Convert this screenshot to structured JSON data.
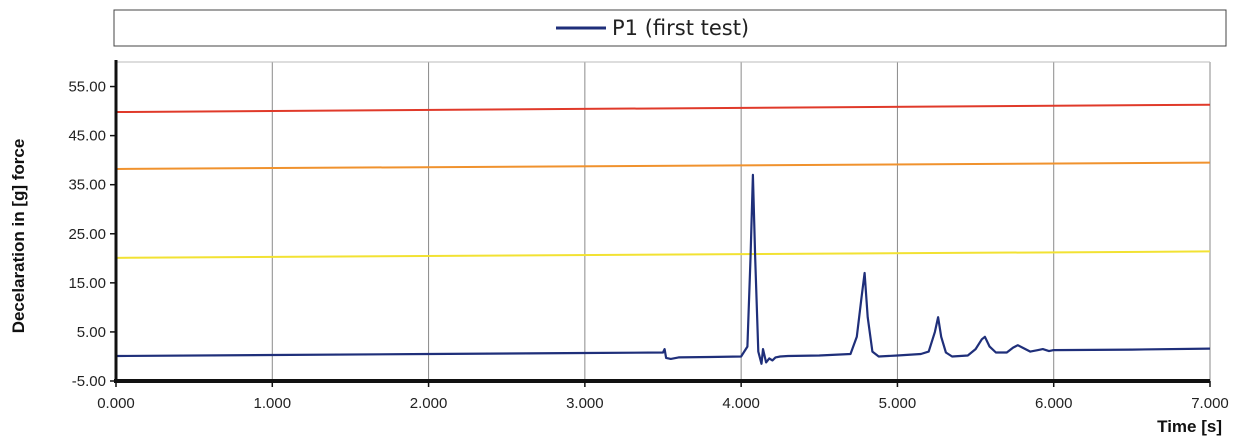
{
  "chart_data": {
    "type": "line",
    "title": "",
    "xlabel": "Time [s]",
    "ylabel": "Decelaration in [g]  force",
    "xlim": [
      0,
      7
    ],
    "ylim": [
      -5,
      60
    ],
    "x_ticks": [
      "0.000",
      "1.000",
      "2.000",
      "3.000",
      "4.000",
      "5.000",
      "6.000",
      "7.000"
    ],
    "y_ticks": [
      "-5.00",
      "5.00",
      "15.00",
      "25.00",
      "35.00",
      "45.00",
      "55.00"
    ],
    "grid": "vertical",
    "legend": {
      "position": "top",
      "entries": [
        "P1 (first test)"
      ]
    },
    "series": [
      {
        "name": "P1 (first test)",
        "color": "#1f2f7a",
        "x": [
          0,
          1,
          2,
          3,
          3.5,
          3.51,
          3.52,
          3.55,
          3.6,
          3.8,
          4.0,
          4.04,
          4.06,
          4.075,
          4.09,
          4.11,
          4.13,
          4.14,
          4.16,
          4.18,
          4.2,
          4.22,
          4.25,
          4.3,
          4.5,
          4.7,
          4.74,
          4.77,
          4.79,
          4.81,
          4.84,
          4.88,
          5.0,
          5.15,
          5.2,
          5.24,
          5.26,
          5.28,
          5.31,
          5.35,
          5.45,
          5.5,
          5.54,
          5.56,
          5.59,
          5.63,
          5.7,
          5.74,
          5.77,
          5.8,
          5.85,
          5.9,
          5.93,
          5.97,
          6.0,
          6.5,
          7.0
        ],
        "y": [
          0.1,
          0.3,
          0.5,
          0.7,
          0.8,
          1.5,
          -0.3,
          -0.5,
          -0.2,
          -0.1,
          0,
          2,
          20,
          37,
          20,
          1,
          -1.5,
          1.5,
          -1.2,
          -0.4,
          -0.8,
          -0.2,
          0,
          0.1,
          0.2,
          0.5,
          4,
          12,
          17,
          8,
          1,
          0,
          0.2,
          0.5,
          1,
          5,
          8,
          4,
          0.8,
          0,
          0.2,
          1.5,
          3.5,
          4,
          2,
          0.8,
          0.8,
          1.8,
          2.3,
          1.8,
          1,
          1.3,
          1.5,
          1.1,
          1.3,
          1.4,
          1.6
        ]
      }
    ],
    "reference_lines": [
      {
        "color": "#e03a2a",
        "start": 49.8,
        "end": 51.3
      },
      {
        "color": "#f0922e",
        "start": 38.2,
        "end": 39.5
      },
      {
        "color": "#f2e233",
        "start": 20.1,
        "end": 21.4
      }
    ]
  }
}
